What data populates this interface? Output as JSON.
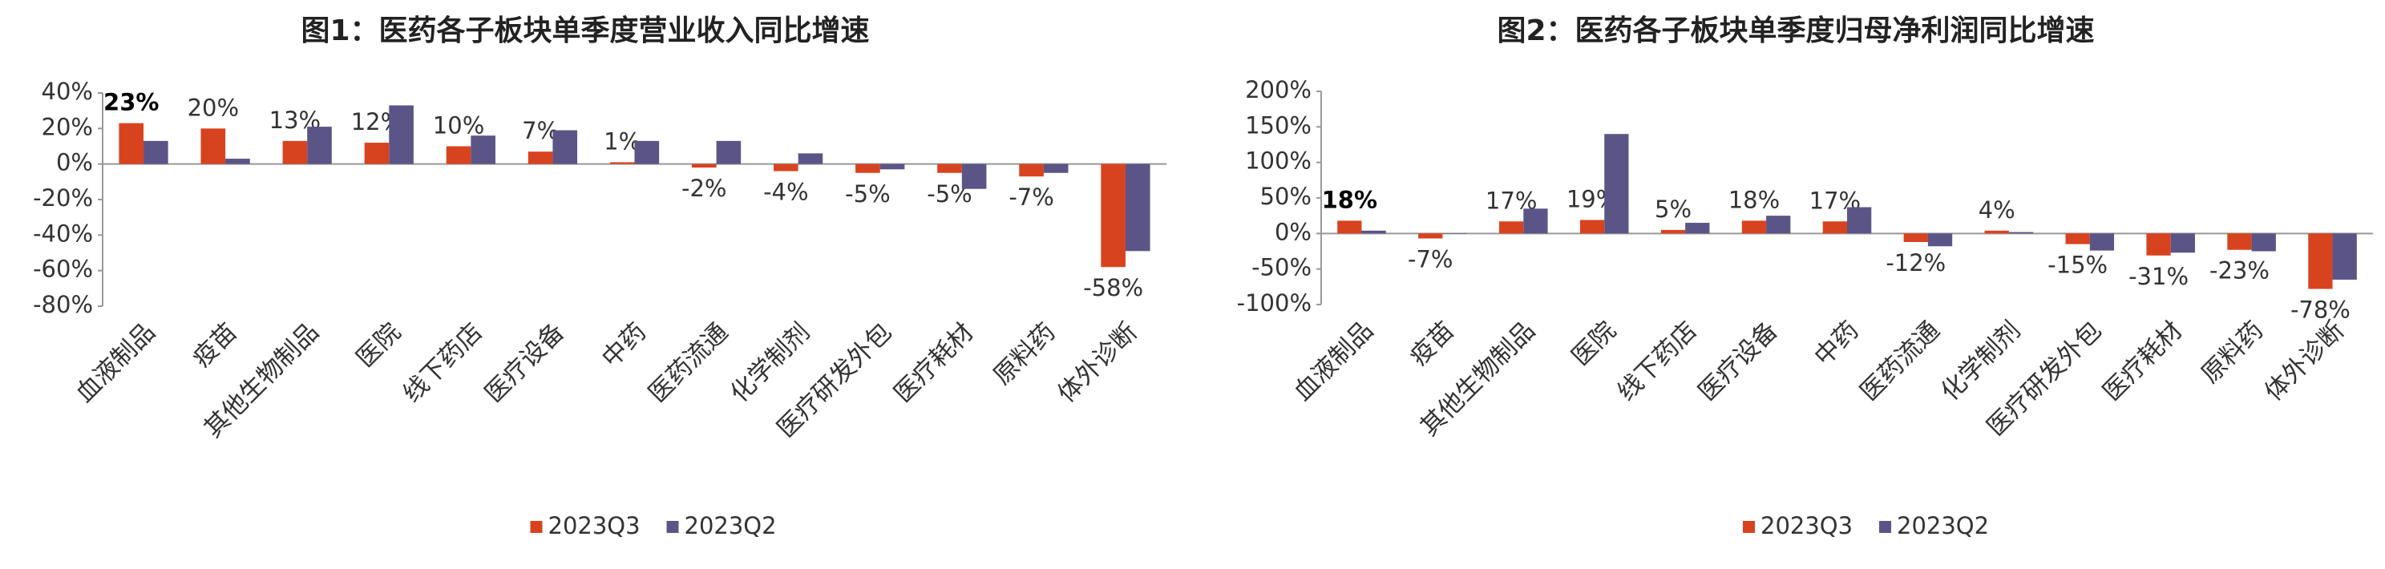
{
  "chart_data": [
    {
      "type": "bar",
      "title": "图1：医药各子板块单季度营业收入同比增速",
      "categories": [
        "血液制品",
        "疫苗",
        "其他生物制品",
        "医院",
        "线下药店",
        "医疗设备",
        "中药",
        "医药流通",
        "化学制剂",
        "医疗研发外包",
        "医疗耗材",
        "原料药",
        "体外诊断"
      ],
      "series": [
        {
          "name": "2023Q3",
          "color": "#d8431f",
          "values": [
            23,
            20,
            13,
            12,
            10,
            7,
            1,
            -2,
            -4,
            -5,
            -5,
            -7,
            -58
          ],
          "value_labels": [
            "23%",
            "20%",
            "13%",
            "12%",
            "10%",
            "7%",
            "1%",
            "-2%",
            "-4%",
            "-5%",
            "-5%",
            "-7%",
            "-58%"
          ]
        },
        {
          "name": "2023Q2",
          "color": "#5b5587",
          "values": [
            13,
            3,
            21,
            33,
            16,
            19,
            13,
            13,
            6,
            -3,
            -14,
            -5,
            -49
          ]
        }
      ],
      "ylim": [
        -80,
        40
      ],
      "yticks": [
        {
          "value": -80,
          "label": "-80%"
        },
        {
          "value": -60,
          "label": "-60%"
        },
        {
          "value": -40,
          "label": "-40%"
        },
        {
          "value": -20,
          "label": "-20%"
        },
        {
          "value": 0,
          "label": "0%"
        },
        {
          "value": 20,
          "label": "20%"
        },
        {
          "value": 40,
          "label": "40%"
        }
      ],
      "legend": "bottom"
    },
    {
      "type": "bar",
      "title": "图2：医药各子板块单季度归母净利润同比增速",
      "categories": [
        "血液制品",
        "疫苗",
        "其他生物制品",
        "医院",
        "线下药店",
        "医疗设备",
        "中药",
        "医药流通",
        "化学制剂",
        "医疗研发外包",
        "医疗耗材",
        "原料药",
        "体外诊断"
      ],
      "series": [
        {
          "name": "2023Q3",
          "color": "#d8431f",
          "values": [
            18,
            -7,
            17,
            19,
            5,
            18,
            17,
            -12,
            4,
            -15,
            -31,
            -23,
            -78
          ],
          "value_labels": [
            "18%",
            "-7%",
            "17%",
            "19%",
            "5%",
            "18%",
            "17%",
            "-12%",
            "4%",
            "-15%",
            "-31%",
            "-23%",
            "-78%"
          ]
        },
        {
          "name": "2023Q2",
          "color": "#5b5587",
          "values": [
            4,
            0,
            35,
            140,
            15,
            25,
            37,
            -18,
            2,
            -24,
            -27,
            -25,
            -65
          ]
        }
      ],
      "ylim": [
        -100,
        200
      ],
      "yticks": [
        {
          "value": -100,
          "label": "-100%"
        },
        {
          "value": -50,
          "label": "-50%"
        },
        {
          "value": 0,
          "label": "0%"
        },
        {
          "value": 50,
          "label": "50%"
        },
        {
          "value": 100,
          "label": "100%"
        },
        {
          "value": 150,
          "label": "150%"
        },
        {
          "value": 200,
          "label": "200%"
        }
      ],
      "legend": "bottom"
    }
  ]
}
